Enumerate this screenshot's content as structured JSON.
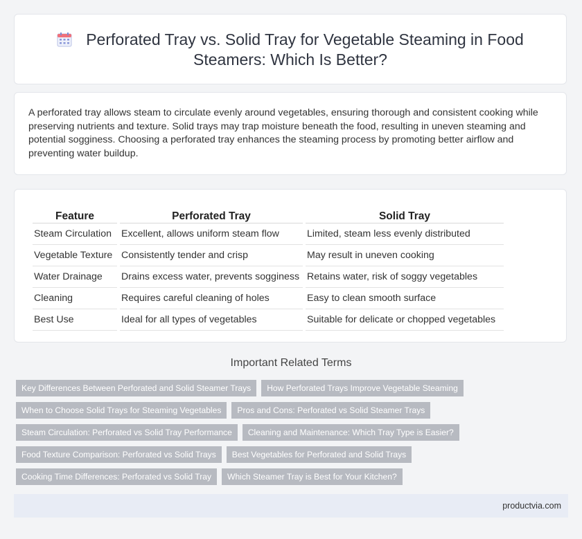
{
  "header": {
    "title_line1": "Perforated Tray vs. Solid Tray for Vegetable Steaming in Food",
    "title_line2": "Steamers: Which Is Better?",
    "icon": "calendar-icon"
  },
  "intro": {
    "text": "A perforated tray allows steam to circulate evenly around vegetables, ensuring thorough and consistent cooking while preserving nutrients and texture. Solid trays may trap moisture beneath the food, resulting in uneven steaming and potential sogginess. Choosing a perforated tray enhances the steaming process by promoting better airflow and preventing water buildup."
  },
  "table": {
    "headers": [
      "Feature",
      "Perforated Tray",
      "Solid Tray"
    ],
    "rows": [
      [
        "Steam Circulation",
        "Excellent, allows uniform steam flow",
        "Limited, steam less evenly distributed"
      ],
      [
        "Vegetable Texture",
        "Consistently tender and crisp",
        "May result in uneven cooking"
      ],
      [
        "Water Drainage",
        "Drains excess water, prevents sogginess",
        "Retains water, risk of soggy vegetables"
      ],
      [
        "Cleaning",
        "Requires careful cleaning of holes",
        "Easy to clean smooth surface"
      ],
      [
        "Best Use",
        "Ideal for all types of vegetables",
        "Suitable for delicate or chopped vegetables"
      ]
    ]
  },
  "related": {
    "title": "Important Related Terms",
    "rows": [
      [
        "Key Differences Between Perforated and Solid Steamer Trays",
        "How Perforated Trays Improve Vegetable Steaming"
      ],
      [
        "When to Choose Solid Trays for Steaming Vegetables",
        "Pros and Cons: Perforated vs Solid Steamer Trays"
      ],
      [
        "Steam Circulation: Perforated vs Solid Tray Performance",
        "Cleaning and Maintenance: Which Tray Type is Easier?"
      ],
      [
        "Food Texture Comparison: Perforated vs Solid Trays",
        "Best Vegetables for Perforated and Solid Trays"
      ],
      [
        "Cooking Time Differences: Perforated vs Solid Tray",
        "Which Steamer Tray is Best for Your Kitchen?"
      ]
    ]
  },
  "footer": {
    "site": "productvia.com"
  }
}
